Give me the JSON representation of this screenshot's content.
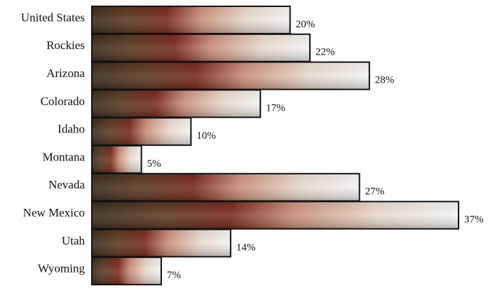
{
  "chart_data": {
    "type": "bar",
    "orientation": "horizontal",
    "categories": [
      "United States",
      "Rockies",
      "Arizona",
      "Colorado",
      "Idaho",
      "Montana",
      "Nevada",
      "New Mexico",
      "Utah",
      "Wyoming"
    ],
    "values": [
      20,
      22,
      28,
      17,
      10,
      5,
      27,
      37,
      14,
      7
    ],
    "value_labels": [
      "20%",
      "22%",
      "28%",
      "17%",
      "10%",
      "5%",
      "27%",
      "37%",
      "14%",
      "7%"
    ],
    "unit": "%",
    "xlim": [
      0,
      37
    ],
    "grid": false,
    "title": "",
    "xlabel": "",
    "ylabel": ""
  },
  "bar_fill": {
    "photo_colors": [
      "#3a2b1c",
      "#5c3a22",
      "#7a2a1e",
      "#c98f7a",
      "#e8d9cc",
      "#f4f4f2",
      "#b94a5a",
      "#d9cfc0",
      "#7a6a45"
    ],
    "border_color": "#111111"
  }
}
